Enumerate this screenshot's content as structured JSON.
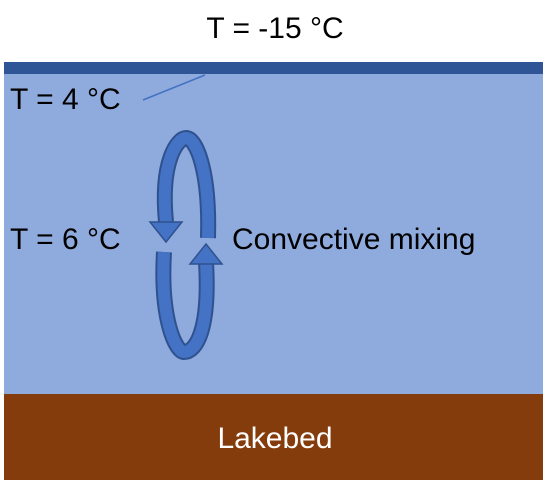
{
  "header": {
    "title": "T = -15 °C"
  },
  "labels": {
    "surface": "T = 4 °C",
    "middle": "T = 6 °C",
    "mixing": "Convective mixing",
    "bed": "Lakebed"
  }
}
